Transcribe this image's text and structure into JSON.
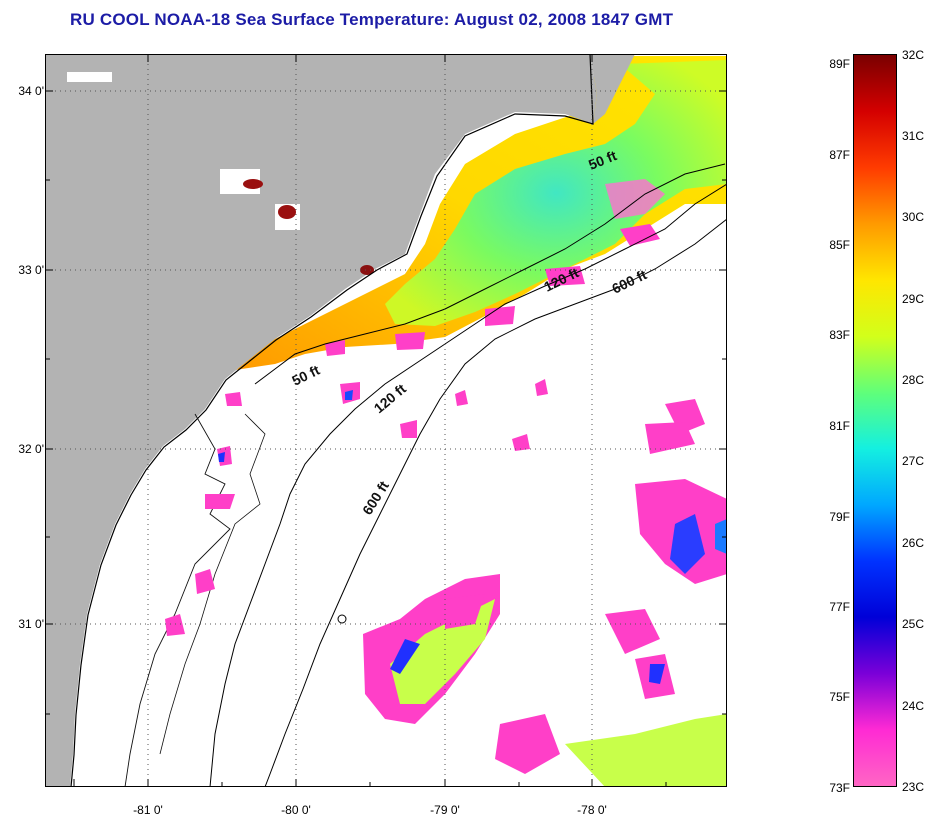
{
  "title": "RU COOL  NOAA-18  Sea Surface Temperature:  August 02, 2008 1847 GMT",
  "map": {
    "lat_labels": [
      "34 0'",
      "33 0'",
      "32 0'",
      "31 0'"
    ],
    "lon_labels": [
      "-81 0'",
      "-80 0'",
      "-79 0'",
      "-78 0'"
    ],
    "depth_contours": [
      {
        "label": "50 ft"
      },
      {
        "label": "120 ft"
      },
      {
        "label": "600 ft"
      },
      {
        "label": "50 ft"
      },
      {
        "label": "120 ft"
      },
      {
        "label": "600 ft"
      }
    ],
    "colors": {
      "land": "#b3b3b3",
      "no_data": "#ffffff",
      "grid": "#555555"
    }
  },
  "colorbar": {
    "fahrenheit_labels": [
      "89F",
      "87F",
      "85F",
      "83F",
      "81F",
      "79F",
      "77F",
      "75F",
      "73F"
    ],
    "celsius_labels": [
      "32C",
      "31C",
      "30C",
      "29C",
      "28C",
      "27C",
      "26C",
      "25C",
      "24C",
      "23C"
    ],
    "gradient_colors": [
      "#7a0000",
      "#d40000",
      "#ff3b00",
      "#ff9a00",
      "#ffe600",
      "#d2ff1a",
      "#5fff7a",
      "#14f0e0",
      "#00a8ff",
      "#0033ff",
      "#0000d8",
      "#7a00d8",
      "#ff2ad4",
      "#ff66c4"
    ]
  }
}
